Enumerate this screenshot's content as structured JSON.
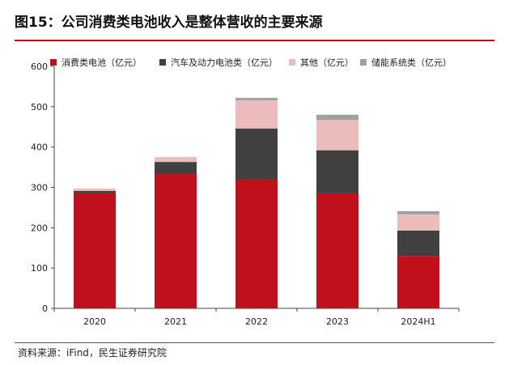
{
  "title": "图15：公司消费类电池收入是整体营收的主要来源",
  "source": "资料来源：iFind，民生证券研究院",
  "chart_data": {
    "type": "bar",
    "stacked": true,
    "categories": [
      "2020",
      "2021",
      "2022",
      "2023",
      "2024H1"
    ],
    "ylim": [
      0,
      600
    ],
    "yticks": [
      0,
      100,
      200,
      300,
      400,
      500,
      600
    ],
    "grid": false,
    "legend_position": "top",
    "series": [
      {
        "name": "消费类电池（亿元）",
        "color": "#c0101c",
        "values": [
          286,
          333,
          320,
          285,
          130
        ]
      },
      {
        "name": "汽车及动力电池类（亿元）",
        "color": "#404040",
        "values": [
          5,
          30,
          126,
          107,
          63
        ]
      },
      {
        "name": "其他（亿元）",
        "color": "#ecbcbc",
        "values": [
          6,
          12,
          70,
          75,
          40
        ]
      },
      {
        "name": "储能系统类（亿元）",
        "color": "#a0a0a0",
        "values": [
          0,
          0,
          6,
          13,
          8
        ]
      }
    ]
  }
}
